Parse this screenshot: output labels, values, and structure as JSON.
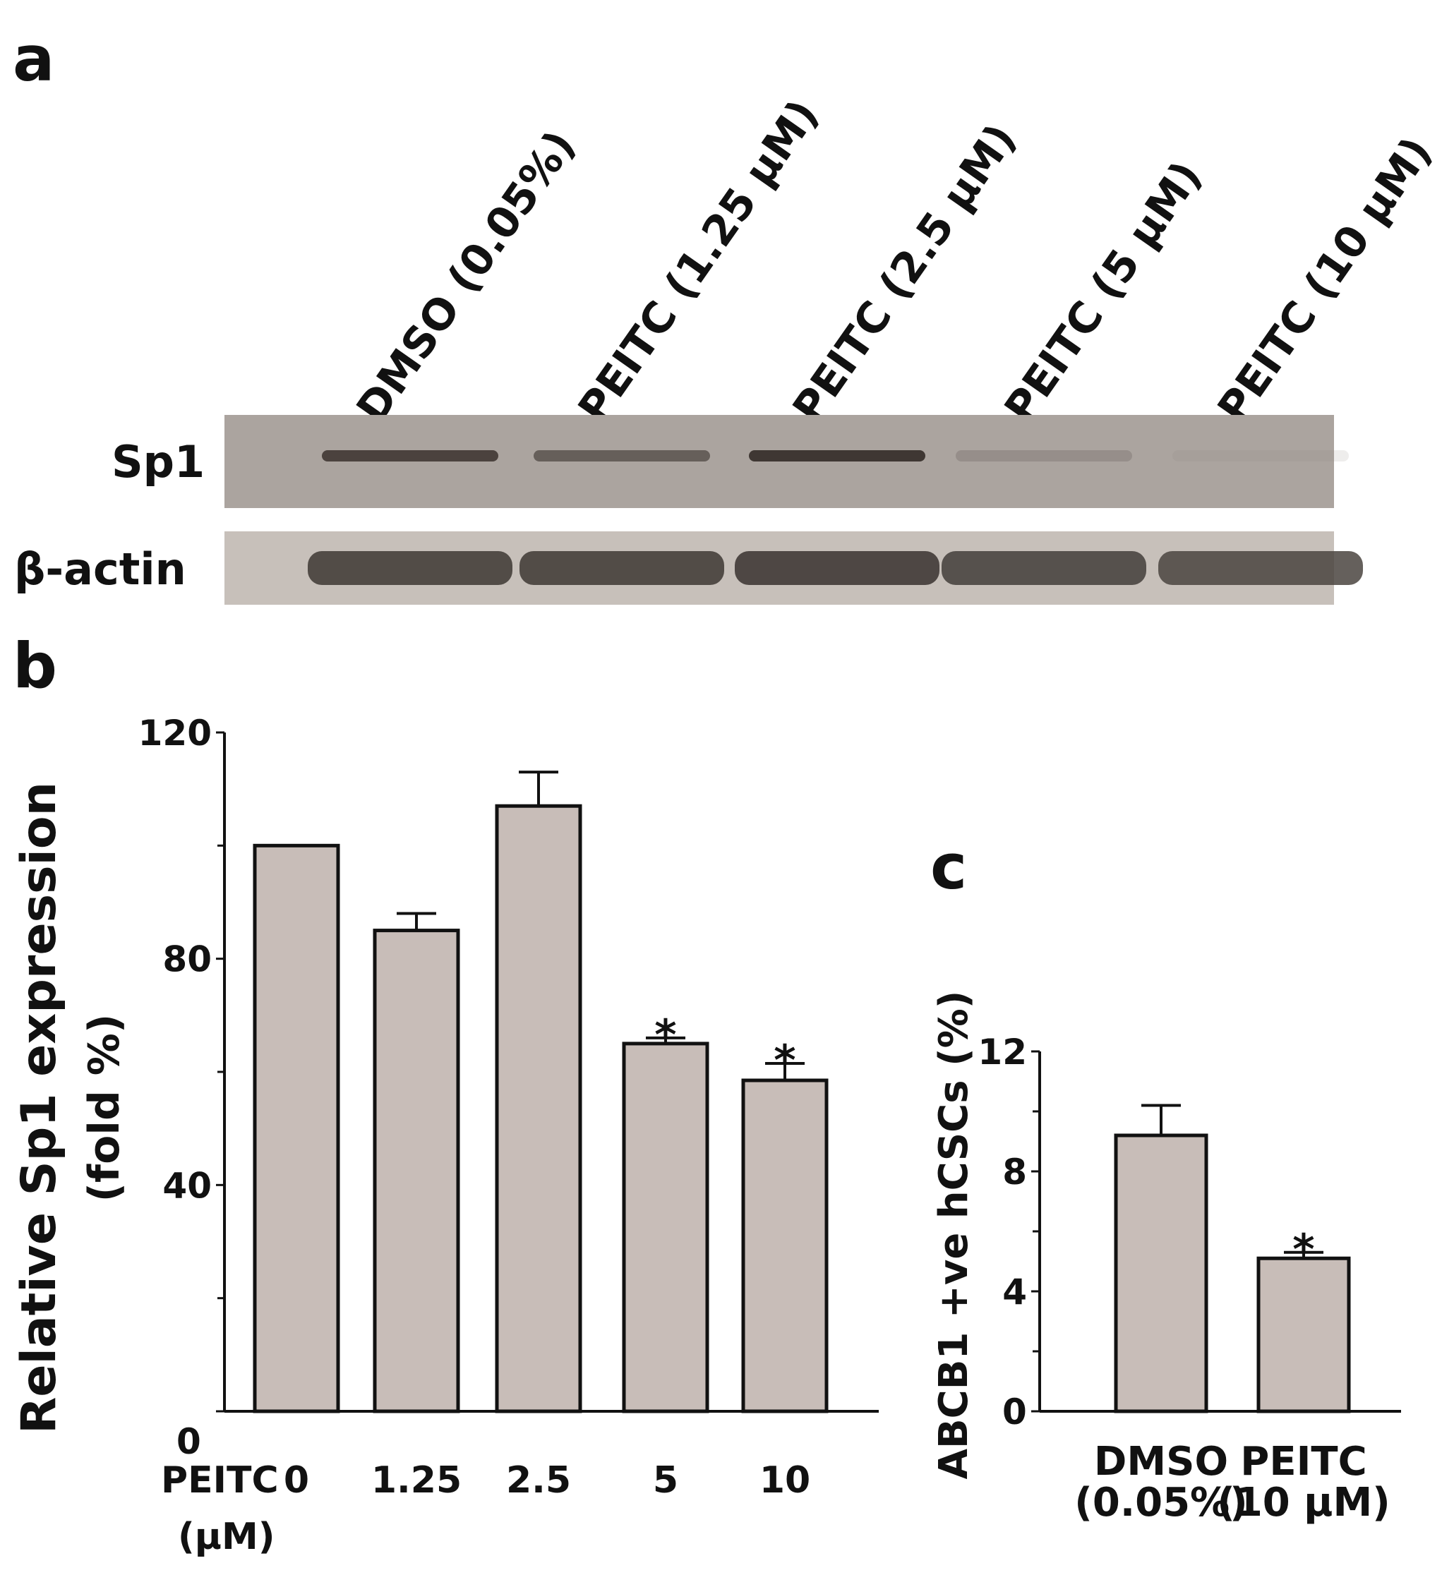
{
  "panels": {
    "a": {
      "letter": "a",
      "lanes": [
        "DMSO (0.05%)",
        "PEITC (1.25 μM)",
        "PEITC (2.5 μM)",
        "PEITC (5 μM)",
        "PEITC (10 μM)"
      ],
      "rows": [
        {
          "label": "Sp1",
          "band_intensity": [
            0.85,
            0.7,
            0.9,
            0.35,
            0.08
          ]
        },
        {
          "label": "β-actin",
          "band_intensity": [
            0.9,
            0.9,
            0.92,
            0.88,
            0.85
          ]
        }
      ]
    },
    "b": {
      "letter": "b"
    },
    "c": {
      "letter": "c"
    }
  },
  "chart_data": [
    {
      "type": "bar",
      "panel": "b",
      "categories": [
        "0",
        "1.25",
        "2.5",
        "5",
        "10"
      ],
      "values": [
        100,
        85,
        107,
        65,
        58.5
      ],
      "errors": [
        0,
        3,
        6,
        1,
        3
      ],
      "significance": [
        "",
        "",
        "",
        "*",
        "*"
      ],
      "ylabel_lines": [
        "Relative Sp1 expression",
        "(fold %)"
      ],
      "xlabel_lines": [
        "PEITC",
        "(μM)"
      ],
      "ylim": [
        0,
        120
      ],
      "y_ticks_labeled": [
        0,
        40,
        80,
        120
      ],
      "y_ticks_minor": [
        20,
        60,
        100
      ],
      "bar_color": "#c8bdb8"
    },
    {
      "type": "bar",
      "panel": "c",
      "categories": [
        [
          "DMSO",
          "(0.05%)"
        ],
        [
          "PEITC",
          "(10 μM)"
        ]
      ],
      "values": [
        9.2,
        5.1
      ],
      "errors": [
        1.0,
        0.2
      ],
      "significance": [
        "",
        "*"
      ],
      "ylabel": "ABCB1 +ve hCSCs (%)",
      "ylim": [
        0,
        12
      ],
      "y_ticks_labeled": [
        0,
        4,
        8,
        12
      ],
      "y_ticks_minor": [
        2,
        6,
        10
      ],
      "bar_color": "#c8bdb8"
    }
  ]
}
